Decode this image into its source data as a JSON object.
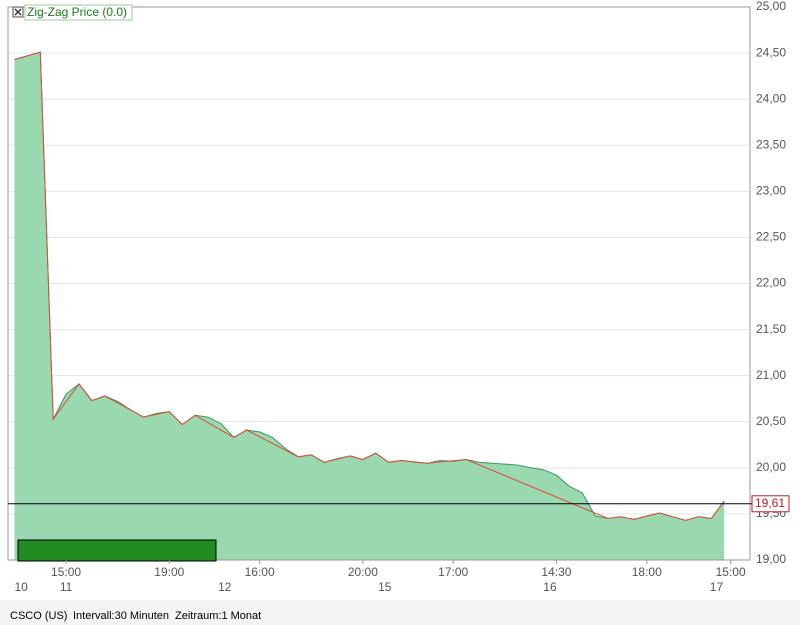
{
  "chart_data": {
    "type": "area",
    "legend": "Zig-Zag Price (0.0)",
    "footer": [
      "CSCO (US)",
      "Intervall:30 Minuten",
      "Zeitraum:1 Monat"
    ],
    "series": [
      {
        "color": "#9ad8b0",
        "x": [
          0,
          2,
          3,
          4,
          5,
          6,
          7,
          8,
          9,
          10,
          11,
          12,
          13,
          14,
          15,
          16,
          17,
          18,
          19,
          20,
          21,
          22,
          23,
          24,
          25,
          26,
          27,
          28,
          29,
          30,
          31,
          32,
          33,
          34,
          35,
          36,
          37,
          38,
          39,
          40,
          41,
          42,
          43,
          44,
          45,
          46,
          47,
          48,
          49,
          50,
          51,
          52,
          53,
          54,
          55
        ],
        "values": [
          24.43,
          24.51,
          20.53,
          20.8,
          20.91,
          20.73,
          20.78,
          20.72,
          20.63,
          20.55,
          20.59,
          20.61,
          20.47,
          20.57,
          20.55,
          20.48,
          20.33,
          20.41,
          20.39,
          20.33,
          20.21,
          20.12,
          20.14,
          20.06,
          20.1,
          20.13,
          20.09,
          20.16,
          20.06,
          20.08,
          20.06,
          20.05,
          20.08,
          20.07,
          20.09,
          20.06,
          20.05,
          20.04,
          20.03,
          20.0,
          19.98,
          19.92,
          19.8,
          19.73,
          19.48,
          19.45,
          19.47,
          19.44,
          19.48,
          19.51,
          19.47,
          19.43,
          19.47,
          19.45,
          19.64
        ]
      },
      {
        "name": "Zig-Zag Price (0.0)",
        "color": "#e04a3c",
        "x": [
          0,
          2,
          3,
          5,
          6,
          7,
          10,
          12,
          13,
          14,
          17,
          18,
          22,
          23,
          24,
          26,
          27,
          28,
          29,
          30,
          32,
          35,
          46,
          47,
          48,
          50,
          52,
          53,
          54,
          55
        ],
        "values": [
          24.43,
          24.51,
          20.53,
          20.91,
          20.73,
          20.78,
          20.55,
          20.61,
          20.47,
          20.57,
          20.33,
          20.41,
          20.12,
          20.14,
          20.06,
          20.13,
          20.09,
          20.16,
          20.06,
          20.08,
          20.05,
          20.09,
          19.45,
          19.47,
          19.44,
          19.51,
          19.43,
          19.47,
          19.45,
          19.64
        ]
      }
    ],
    "last_price": {
      "value": 19.61,
      "label": "19,61"
    },
    "xlim": [
      -0.5,
      57
    ],
    "xticks": [
      {
        "value": 4,
        "label": "15:00"
      },
      {
        "value": 12,
        "label": "19:00"
      },
      {
        "value": 19,
        "label": "16:00"
      },
      {
        "value": 27,
        "label": "20:00"
      },
      {
        "value": 34,
        "label": "17:00"
      },
      {
        "value": 42,
        "label": "14:30"
      },
      {
        "value": 49,
        "label": "18:00"
      },
      {
        "value": 55.5,
        "label": "15:00"
      }
    ],
    "day_ticks": [
      {
        "value": 0,
        "label": "10"
      },
      {
        "value": 4,
        "label": "11"
      },
      {
        "value": 16.3,
        "label": "12"
      },
      {
        "value": 28.7,
        "label": "15"
      },
      {
        "value": 41.5,
        "label": "16"
      },
      {
        "value": 54.4,
        "label": "17"
      }
    ],
    "ylim": [
      19,
      25
    ],
    "yticks": [
      {
        "value": 19,
        "label": "19,00"
      },
      {
        "value": 19.5,
        "label": "19,50"
      },
      {
        "value": 20,
        "label": "20,00"
      },
      {
        "value": 20.5,
        "label": "20,50"
      },
      {
        "value": 21,
        "label": "21,00"
      },
      {
        "value": 21.5,
        "label": "21,50"
      },
      {
        "value": 22,
        "label": "22,00"
      },
      {
        "value": 22.5,
        "label": "22,50"
      },
      {
        "value": 23,
        "label": "23,00"
      },
      {
        "value": 23.5,
        "label": "23,50"
      },
      {
        "value": 24,
        "label": "24,00"
      },
      {
        "value": 24.5,
        "label": "24,50"
      },
      {
        "value": 25,
        "label": "25,00"
      }
    ],
    "grid": true
  }
}
